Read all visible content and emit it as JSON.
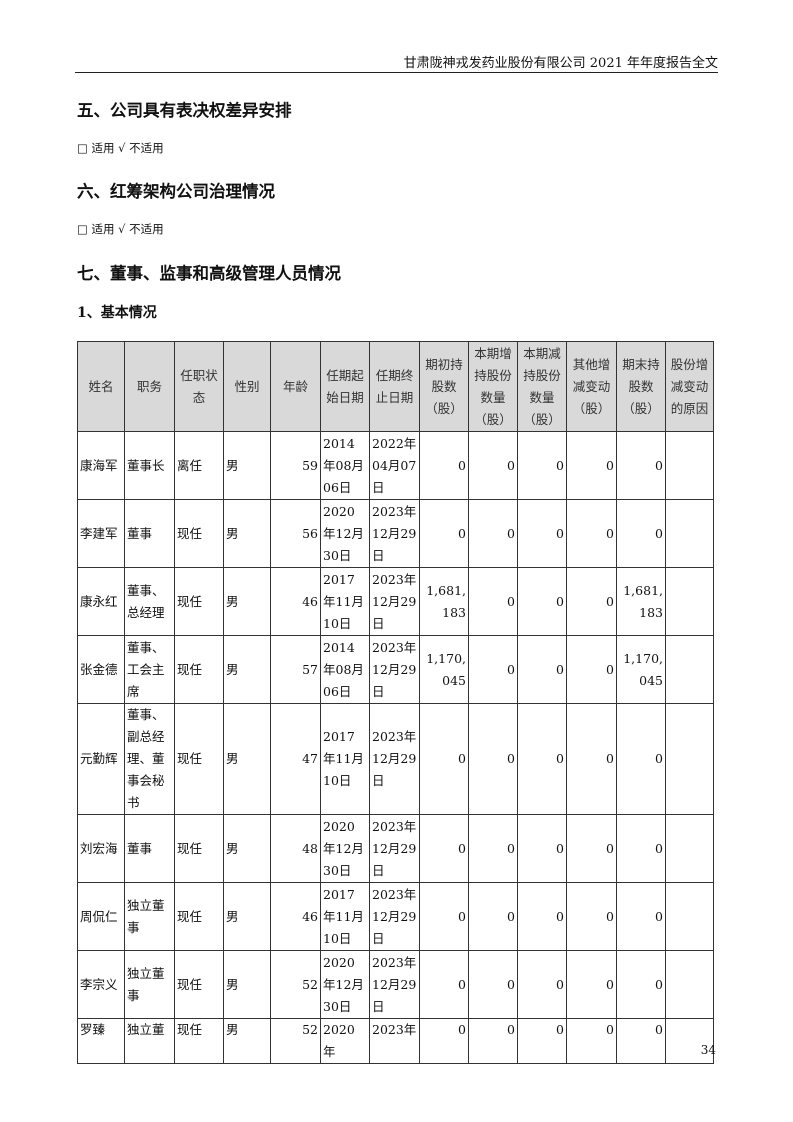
{
  "header": {
    "title": "甘肃陇神戎发药业股份有限公司 2021 年年度报告全文"
  },
  "sections": [
    {
      "title": "五、公司具有表决权差异安排",
      "note": "□ 适用 √ 不适用"
    },
    {
      "title": "六、红筹架构公司治理情况",
      "note": "□ 适用 √ 不适用"
    },
    {
      "title": "七、董事、监事和高级管理人员情况"
    }
  ],
  "subsection": "1、基本情况",
  "table": {
    "headers": [
      "姓名",
      "职务",
      "任职状态",
      "性别",
      "年龄",
      "任期起始日期",
      "任期终止日期",
      "期初持股数（股）",
      "本期增持股份数量（股）",
      "本期减持股份数量（股）",
      "其他增减变动（股）",
      "期末持股数（股）",
      "股份增减变动的原因"
    ],
    "rows": [
      [
        "康海军",
        "董事长",
        "离任",
        "男",
        "59",
        "2014年08月06日",
        "2022年04月07日",
        "0",
        "0",
        "0",
        "0",
        "0",
        ""
      ],
      [
        "李建军",
        "董事",
        "现任",
        "男",
        "56",
        "2020年12月30日",
        "2023年12月29日",
        "0",
        "0",
        "0",
        "0",
        "0",
        ""
      ],
      [
        "康永红",
        "董事、总经理",
        "现任",
        "男",
        "46",
        "2017年11月10日",
        "2023年12月29日",
        "1,681,183",
        "0",
        "0",
        "0",
        "1,681,183",
        ""
      ],
      [
        "张金德",
        "董事、工会主席",
        "现任",
        "男",
        "57",
        "2014年08月06日",
        "2023年12月29日",
        "1,170,045",
        "0",
        "0",
        "0",
        "1,170,045",
        ""
      ],
      [
        "元勤辉",
        "董事、副总经理、董事会秘书",
        "现任",
        "男",
        "47",
        "2017年11月10日",
        "2023年12月29日",
        "0",
        "0",
        "0",
        "0",
        "0",
        ""
      ],
      [
        "刘宏海",
        "董事",
        "现任",
        "男",
        "48",
        "2020年12月30日",
        "2023年12月29日",
        "0",
        "0",
        "0",
        "0",
        "0",
        ""
      ],
      [
        "周侃仁",
        "独立董事",
        "现任",
        "男",
        "46",
        "2017年11月10日",
        "2023年12月29日",
        "0",
        "0",
        "0",
        "0",
        "0",
        ""
      ],
      [
        "李宗义",
        "独立董事",
        "现任",
        "男",
        "52",
        "2020年12月30日",
        "2023年12月29日",
        "0",
        "0",
        "0",
        "0",
        "0",
        ""
      ],
      [
        "罗臻",
        "独立董",
        "现任",
        "男",
        "52",
        "2020年",
        "2023年",
        "0",
        "0",
        "0",
        "0",
        "0",
        ""
      ]
    ]
  },
  "page_number": "34"
}
